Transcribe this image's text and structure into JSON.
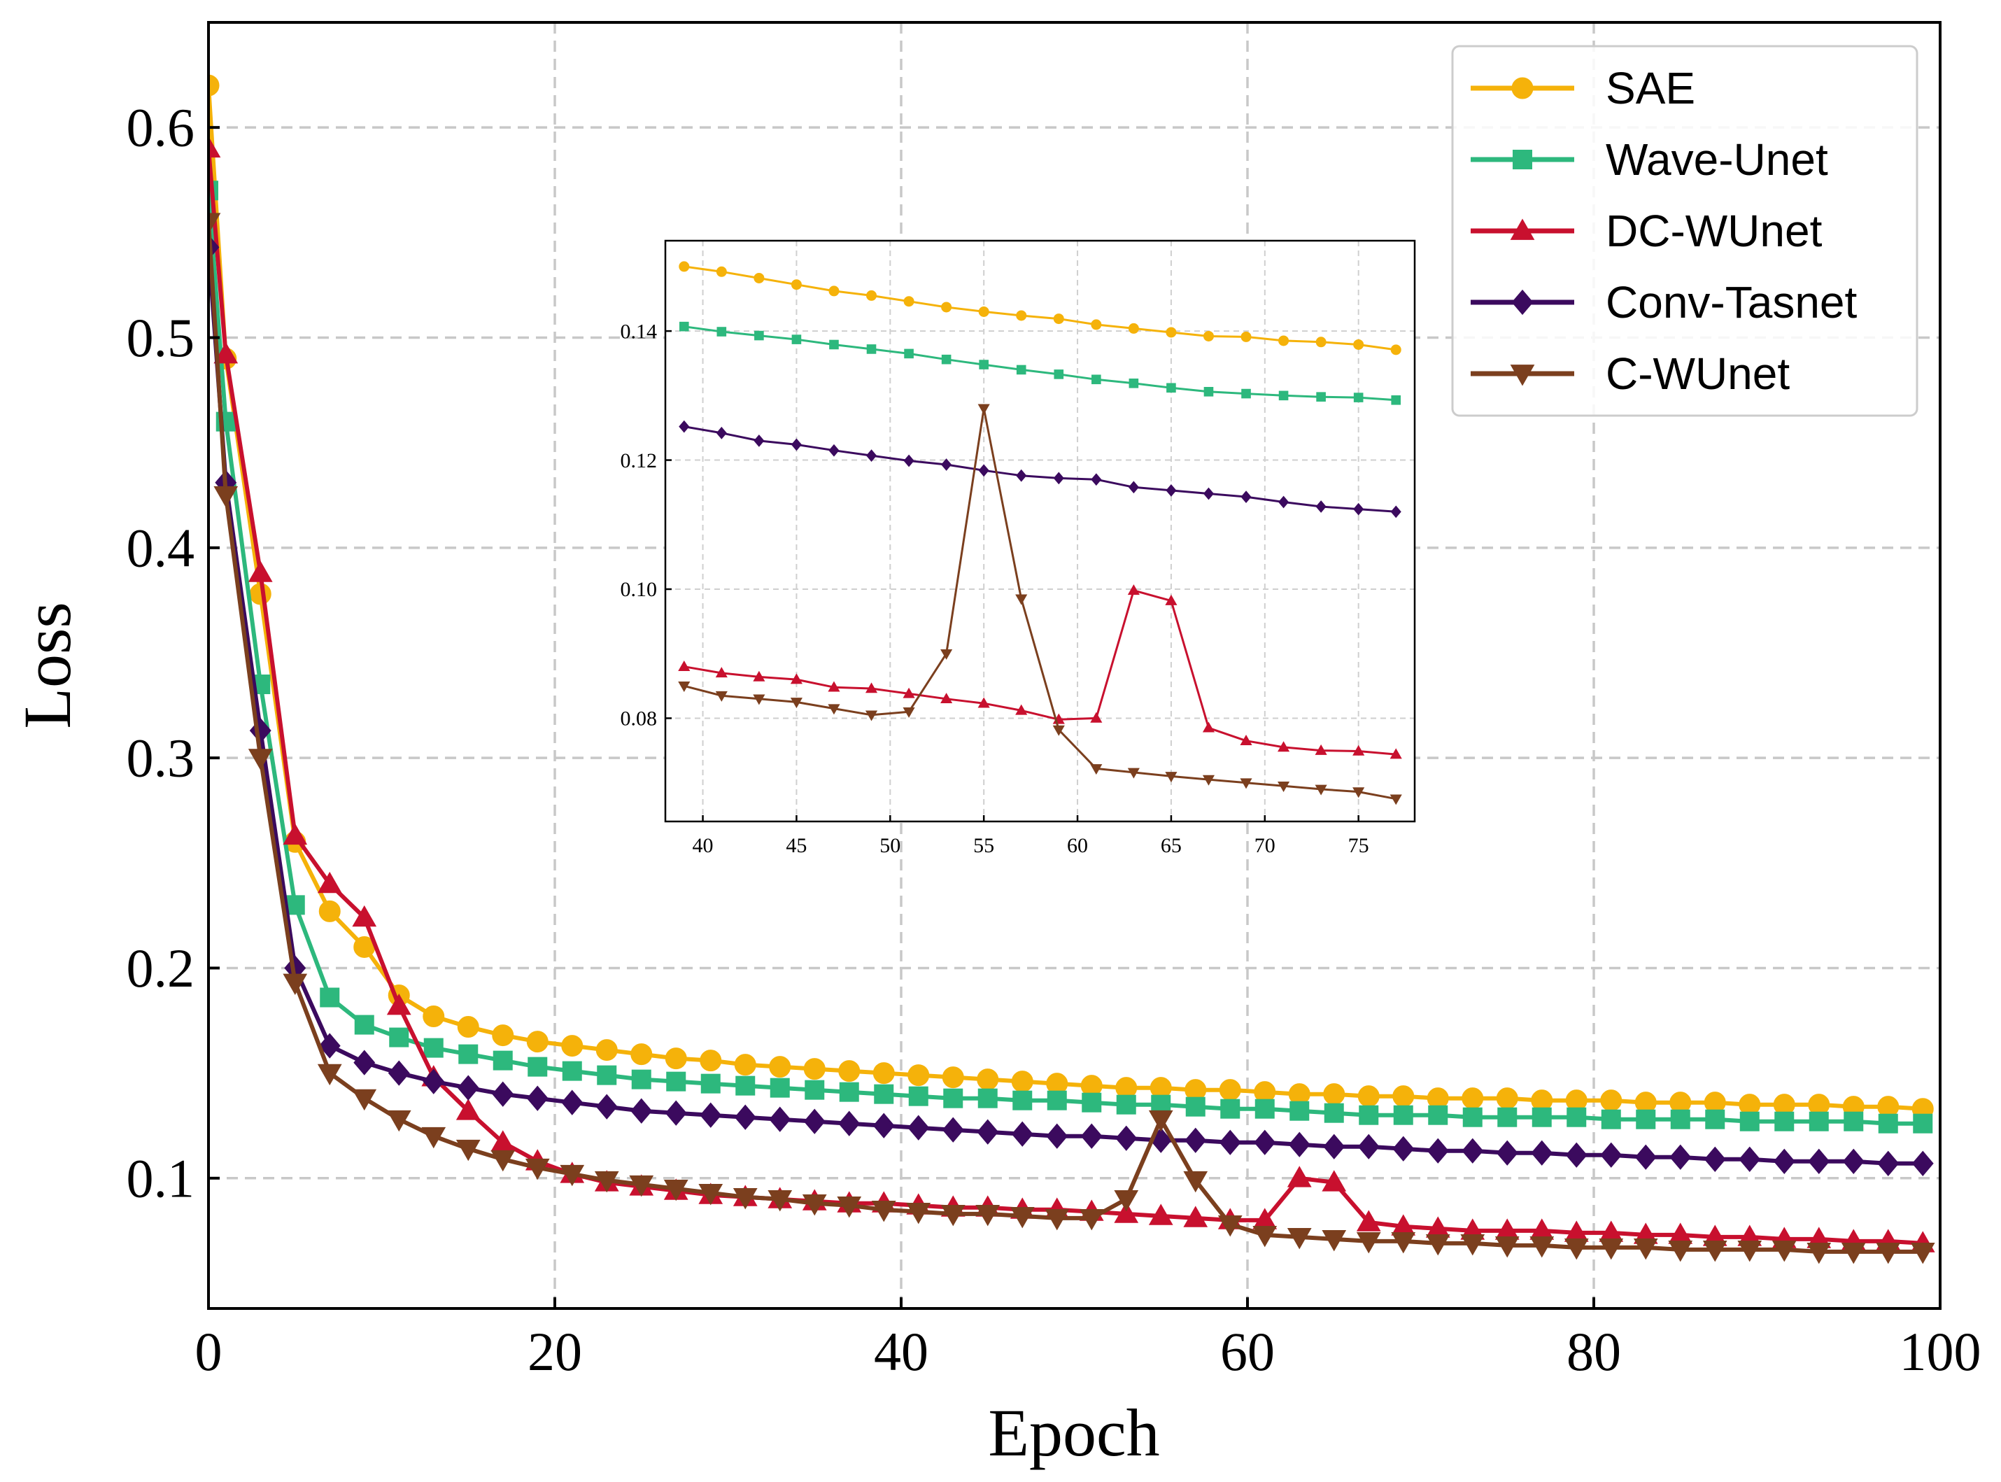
{
  "chart_data": [
    {
      "type": "line",
      "role": "main",
      "title": "",
      "xlabel": "Epoch",
      "ylabel": "Loss",
      "xlim": [
        0,
        100
      ],
      "ylim": [
        0.038,
        0.65
      ],
      "xticks": [
        0,
        20,
        40,
        60,
        80,
        100
      ],
      "xtick_labels": [
        "0",
        "20",
        "40",
        "60",
        "80",
        "100"
      ],
      "yticks": [
        0.1,
        0.2,
        0.3,
        0.4,
        0.5,
        0.6
      ],
      "ytick_labels": [
        "0.1",
        "0.2",
        "0.3",
        "0.4",
        "0.5",
        "0.6"
      ],
      "grid": true,
      "legend_position": "top-right",
      "x": [
        0,
        1,
        3,
        5,
        7,
        9,
        11,
        13,
        15,
        17,
        19,
        21,
        23,
        25,
        27,
        29,
        31,
        33,
        35,
        37,
        39,
        41,
        43,
        45,
        47,
        49,
        51,
        53,
        55,
        57,
        59,
        61,
        63,
        65,
        67,
        69,
        71,
        73,
        75,
        77,
        79,
        81,
        83,
        85,
        87,
        89,
        91,
        93,
        95,
        97,
        99
      ],
      "series": [
        {
          "name": "SAE",
          "color": "#F5B20A",
          "marker": "circle",
          "values": [
            0.62,
            0.49,
            0.378,
            0.26,
            0.227,
            0.21,
            0.187,
            0.177,
            0.172,
            0.168,
            0.165,
            0.163,
            0.161,
            0.159,
            0.157,
            0.156,
            0.154,
            0.153,
            0.152,
            0.151,
            0.15,
            0.149,
            0.148,
            0.147,
            0.146,
            0.145,
            0.144,
            0.143,
            0.143,
            0.142,
            0.142,
            0.141,
            0.14,
            0.14,
            0.139,
            0.139,
            0.138,
            0.138,
            0.138,
            0.137,
            0.137,
            0.137,
            0.136,
            0.136,
            0.136,
            0.135,
            0.135,
            0.135,
            0.134,
            0.134,
            0.133
          ]
        },
        {
          "name": "Wave-Unet",
          "color": "#2DB87D",
          "marker": "square",
          "values": [
            0.57,
            0.46,
            0.335,
            0.23,
            0.186,
            0.173,
            0.167,
            0.162,
            0.159,
            0.156,
            0.153,
            0.151,
            0.149,
            0.147,
            0.146,
            0.145,
            0.144,
            0.143,
            0.142,
            0.141,
            0.14,
            0.139,
            0.138,
            0.138,
            0.137,
            0.137,
            0.136,
            0.135,
            0.135,
            0.134,
            0.133,
            0.133,
            0.132,
            0.131,
            0.13,
            0.13,
            0.13,
            0.129,
            0.129,
            0.129,
            0.129,
            0.128,
            0.128,
            0.128,
            0.128,
            0.127,
            0.127,
            0.127,
            0.127,
            0.126,
            0.126
          ]
        },
        {
          "name": "DC-WUnet",
          "color": "#C8102E",
          "marker": "triangle-up",
          "values": [
            0.59,
            0.492,
            0.388,
            0.263,
            0.24,
            0.224,
            0.182,
            0.148,
            0.132,
            0.117,
            0.108,
            0.102,
            0.098,
            0.096,
            0.094,
            0.092,
            0.091,
            0.09,
            0.089,
            0.088,
            0.088,
            0.087,
            0.086,
            0.086,
            0.085,
            0.085,
            0.084,
            0.083,
            0.082,
            0.081,
            0.08,
            0.08,
            0.1,
            0.098,
            0.079,
            0.077,
            0.076,
            0.075,
            0.075,
            0.075,
            0.074,
            0.074,
            0.073,
            0.073,
            0.072,
            0.072,
            0.071,
            0.071,
            0.07,
            0.07,
            0.069
          ]
        },
        {
          "name": "Conv-Tasnet",
          "color": "#3B0A5E",
          "marker": "diamond",
          "values": [
            0.543,
            0.431,
            0.313,
            0.2,
            0.163,
            0.155,
            0.15,
            0.146,
            0.143,
            0.14,
            0.138,
            0.136,
            0.134,
            0.132,
            0.131,
            0.13,
            0.129,
            0.128,
            0.127,
            0.126,
            0.125,
            0.124,
            0.123,
            0.122,
            0.121,
            0.12,
            0.12,
            0.119,
            0.118,
            0.118,
            0.117,
            0.117,
            0.116,
            0.115,
            0.115,
            0.114,
            0.113,
            0.113,
            0.112,
            0.112,
            0.111,
            0.111,
            0.11,
            0.11,
            0.109,
            0.109,
            0.108,
            0.108,
            0.108,
            0.107,
            0.107
          ]
        },
        {
          "name": "C-WUnet",
          "color": "#7B3F1E",
          "marker": "triangle-down",
          "values": [
            0.555,
            0.425,
            0.3,
            0.193,
            0.15,
            0.138,
            0.128,
            0.12,
            0.114,
            0.109,
            0.105,
            0.102,
            0.099,
            0.097,
            0.095,
            0.093,
            0.091,
            0.09,
            0.088,
            0.087,
            0.085,
            0.084,
            0.083,
            0.083,
            0.082,
            0.081,
            0.081,
            0.09,
            0.128,
            0.099,
            0.078,
            0.073,
            0.072,
            0.071,
            0.07,
            0.07,
            0.069,
            0.069,
            0.068,
            0.068,
            0.067,
            0.067,
            0.067,
            0.066,
            0.066,
            0.066,
            0.066,
            0.065,
            0.065,
            0.065,
            0.065
          ]
        }
      ]
    },
    {
      "type": "line",
      "role": "inset",
      "title": "",
      "xlabel": "",
      "ylabel": "",
      "xlim": [
        38,
        78
      ],
      "ylim": [
        0.064,
        0.154
      ],
      "xticks": [
        40,
        45,
        50,
        55,
        60,
        65,
        70,
        75
      ],
      "xtick_labels": [
        "40",
        "45",
        "50",
        "55",
        "60",
        "65",
        "70",
        "75"
      ],
      "yticks": [
        0.08,
        0.1,
        0.12,
        0.14
      ],
      "ytick_labels": [
        "0.08",
        "0.10",
        "0.12",
        "0.14"
      ],
      "grid": true,
      "x": [
        39,
        41,
        43,
        45,
        47,
        49,
        51,
        53,
        55,
        57,
        59,
        61,
        63,
        65,
        67,
        69,
        71,
        73,
        75,
        77
      ],
      "series": [
        {
          "name": "SAE",
          "color": "#F5B20A",
          "marker": "circle",
          "values": [
            0.15,
            0.1492,
            0.1482,
            0.1472,
            0.1462,
            0.1455,
            0.1446,
            0.1437,
            0.143,
            0.1424,
            0.1419,
            0.141,
            0.1404,
            0.1398,
            0.1392,
            0.1391,
            0.1385,
            0.1383,
            0.1379,
            0.1371
          ]
        },
        {
          "name": "Wave-Unet",
          "color": "#2DB87D",
          "marker": "square",
          "values": [
            0.1407,
            0.1399,
            0.1393,
            0.1387,
            0.1379,
            0.1372,
            0.1365,
            0.1356,
            0.1348,
            0.134,
            0.1333,
            0.1325,
            0.1319,
            0.1312,
            0.1306,
            0.1303,
            0.13,
            0.1298,
            0.1297,
            0.1293
          ]
        },
        {
          "name": "DC-WUnet",
          "color": "#C8102E",
          "marker": "triangle-up",
          "values": [
            0.088,
            0.087,
            0.0864,
            0.086,
            0.0848,
            0.0846,
            0.0838,
            0.083,
            0.0823,
            0.0812,
            0.0798,
            0.08,
            0.0998,
            0.0982,
            0.0785,
            0.0765,
            0.0755,
            0.075,
            0.0749,
            0.0744
          ]
        },
        {
          "name": "Conv-Tasnet",
          "color": "#3B0A5E",
          "marker": "diamond",
          "values": [
            0.1252,
            0.1242,
            0.123,
            0.1224,
            0.1215,
            0.1207,
            0.1199,
            0.1193,
            0.1184,
            0.1176,
            0.1172,
            0.117,
            0.1158,
            0.1153,
            0.1148,
            0.1143,
            0.1135,
            0.1128,
            0.1124,
            0.112
          ]
        },
        {
          "name": "C-WUnet",
          "color": "#7B3F1E",
          "marker": "triangle-down",
          "values": [
            0.085,
            0.0835,
            0.083,
            0.0825,
            0.0815,
            0.0805,
            0.081,
            0.09,
            0.128,
            0.0985,
            0.0782,
            0.0722,
            0.0716,
            0.071,
            0.0705,
            0.07,
            0.0695,
            0.069,
            0.0686,
            0.0675
          ]
        }
      ]
    }
  ]
}
